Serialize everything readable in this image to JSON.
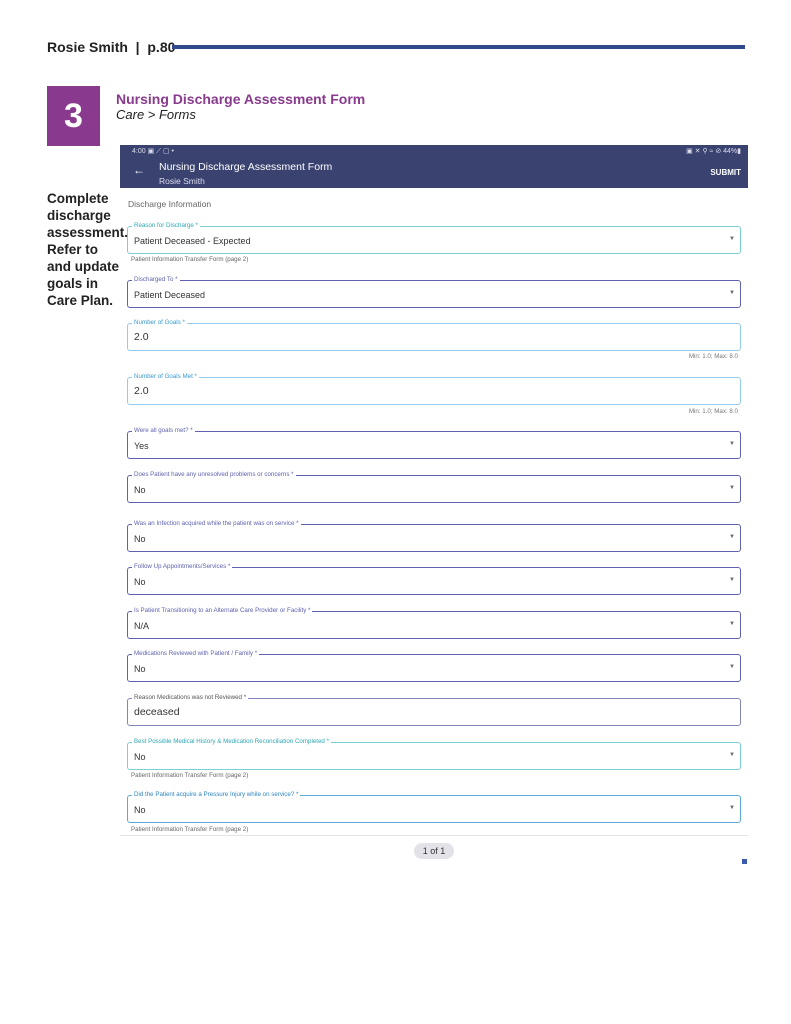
{
  "doc_header": {
    "text": "Rosie Smith  |  p.80"
  },
  "step": {
    "number": "3",
    "title": "Nursing Discharge Assessment Form",
    "breadcrumb": "Care > Forms",
    "instruction": "Complete discharge assessment. Refer to and update goals in Care Plan."
  },
  "status_bar": {
    "time": "4:00 ▣ ⟋ ▢ •",
    "right": "▣ ✕ ⚲ ≈ ⊘ 44%▮"
  },
  "app_bar": {
    "back_icon": "arrow-left-icon",
    "title": "Nursing Discharge Assessment Form",
    "subtitle": "Rosie Smith",
    "submit": "SUBMIT",
    "color": "#3a4370"
  },
  "section_title": "Discharge Information",
  "fields": [
    {
      "label": "Reason for Discharge *",
      "value": "Patient Deceased - Expected",
      "helper": "Patient Information Transfer Form (page 2)"
    },
    {
      "label": "Discharged To *",
      "value": "Patient Deceased"
    },
    {
      "label": "Number of Goals *",
      "value": "2.0",
      "helper": "Min: 1.0; Max: 8.0"
    },
    {
      "label": "Number of Goals Met *",
      "value": "2.0",
      "helper": "Min: 1.0; Max: 8.0"
    },
    {
      "label": "Were all goals met? *",
      "value": "Yes"
    },
    {
      "label": "Does Patient have any unresolved problems or concerns *",
      "value": "No"
    },
    {
      "label": "Was an Infection acquired while the patient was on service *",
      "value": "No"
    },
    {
      "label": "Follow Up Appointments/Services *",
      "value": "No"
    },
    {
      "label": "Is Patient Transitioning to an Alternate Care Provider or Facility *",
      "value": "N/A"
    },
    {
      "label": "Medications Reviewed with Patient / Family *",
      "value": "No"
    },
    {
      "label": "Reason Medications was not Reviewed *",
      "value": "deceased"
    },
    {
      "label": "Best Possible Medical History & Medication Reconciliation Completed *",
      "value": "No",
      "helper": "Patient Information Transfer Form (page 2)"
    },
    {
      "label": "Did the Patient acquire a Pressure Injury while on service? *",
      "value": "No",
      "helper": "Patient Information Transfer Form (page 2)"
    }
  ],
  "pagination": "1 of 1"
}
